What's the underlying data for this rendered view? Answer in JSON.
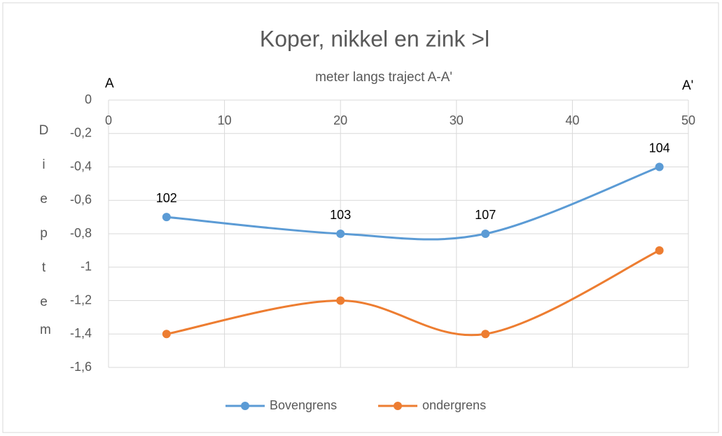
{
  "chart_data": {
    "type": "line",
    "title": "Koper, nikkel en zink >l",
    "x_label": "meter langs traject A-A'",
    "annotations": [
      "A",
      "A'"
    ],
    "y_label": "Diepte",
    "y_unit": "m",
    "x": [
      5,
      20,
      32.5,
      47.5
    ],
    "series": [
      {
        "name": "Bovengrens",
        "color": "#5b9bd5",
        "values": [
          -0.7,
          -0.8,
          -0.8,
          -0.4
        ],
        "point_labels": [
          "102",
          "103",
          "107",
          "104"
        ]
      },
      {
        "name": "ondergrens",
        "color": "#ed7d31",
        "values": [
          -1.4,
          -1.2,
          -1.4,
          -0.9
        ]
      }
    ],
    "xlim": [
      0,
      50
    ],
    "xticks": [
      0,
      10,
      20,
      30,
      40,
      50
    ],
    "ylim": [
      -1.6,
      0
    ],
    "yticks": [
      0,
      {
        "value": -0.2,
        "label": "-0,2"
      },
      {
        "value": -0.4,
        "label": "-0,4"
      },
      {
        "value": -0.6,
        "label": "-0,6"
      },
      {
        "value": -0.8,
        "label": "-0,8"
      },
      -1,
      {
        "value": -1.2,
        "label": "-1,2"
      },
      {
        "value": -1.4,
        "label": "-1,4"
      },
      {
        "value": -1.6,
        "label": "-1,6"
      }
    ],
    "grid": true,
    "smooth": true
  }
}
